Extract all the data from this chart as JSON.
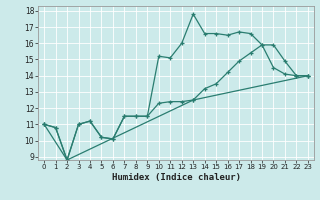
{
  "xlabel": "Humidex (Indice chaleur)",
  "x_range": [
    -0.5,
    23.5
  ],
  "y_range": [
    8.8,
    18.3
  ],
  "yticks": [
    9,
    10,
    11,
    12,
    13,
    14,
    15,
    16,
    17,
    18
  ],
  "xticks": [
    0,
    1,
    2,
    3,
    4,
    5,
    6,
    7,
    8,
    9,
    10,
    11,
    12,
    13,
    14,
    15,
    16,
    17,
    18,
    19,
    20,
    21,
    22,
    23
  ],
  "bg_color": "#cceaea",
  "grid_color": "#ffffff",
  "line_color": "#2a7d70",
  "line1_x": [
    0,
    1,
    2,
    3,
    4,
    5,
    6,
    7,
    8,
    9,
    10,
    11,
    12,
    13,
    14,
    15,
    16,
    17,
    18,
    19,
    20,
    21,
    22,
    23
  ],
  "line1_y": [
    11.0,
    10.8,
    8.8,
    11.0,
    11.2,
    10.2,
    10.1,
    11.5,
    11.5,
    11.5,
    15.2,
    15.1,
    16.0,
    17.8,
    16.6,
    16.6,
    16.5,
    16.7,
    16.6,
    15.9,
    14.5,
    14.1,
    14.0,
    14.0
  ],
  "line2_x": [
    0,
    1,
    2,
    3,
    4,
    5,
    6,
    7,
    8,
    9,
    10,
    11,
    12,
    13,
    14,
    15,
    16,
    17,
    18,
    19,
    20,
    21,
    22,
    23
  ],
  "line2_y": [
    11.0,
    10.8,
    8.8,
    11.0,
    11.2,
    10.2,
    10.1,
    11.5,
    11.5,
    11.5,
    12.3,
    12.4,
    12.4,
    12.5,
    13.2,
    13.5,
    14.2,
    14.9,
    15.4,
    15.9,
    15.9,
    14.9,
    14.0,
    14.0
  ],
  "line3_x": [
    0,
    2,
    13,
    23
  ],
  "line3_y": [
    11.0,
    8.8,
    12.5,
    14.0
  ],
  "tick_fontsize": 5.5,
  "xlabel_fontsize": 6.5
}
